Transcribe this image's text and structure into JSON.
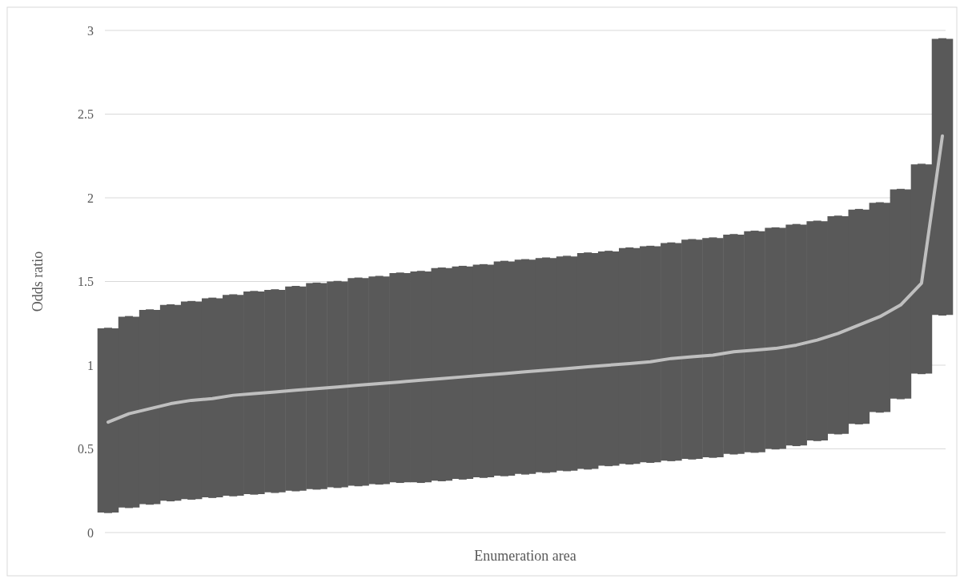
{
  "chart_data": {
    "type": "line",
    "xlabel": "Enumeration area",
    "ylabel": "Odds ratio",
    "categories": [
      null,
      null,
      null,
      null,
      null,
      null,
      null,
      null,
      null,
      null,
      null,
      null,
      null,
      null,
      null,
      null,
      null,
      null,
      null,
      null,
      null,
      null,
      null,
      null,
      null,
      null,
      null,
      null,
      null,
      null,
      null,
      null,
      null,
      null,
      null,
      null,
      null,
      null,
      null,
      null,
      null
    ],
    "series": [
      {
        "color": "#bfbfbf",
        "values": [
          0.66,
          0.71,
          0.74,
          0.77,
          0.79,
          0.8,
          0.82,
          0.83,
          0.84,
          0.85,
          0.86,
          0.87,
          0.88,
          0.89,
          0.9,
          0.91,
          0.92,
          0.93,
          0.94,
          0.95,
          0.96,
          0.97,
          0.98,
          0.99,
          1.0,
          1.01,
          1.02,
          1.04,
          1.05,
          1.06,
          1.08,
          1.09,
          1.1,
          1.12,
          1.15,
          1.19,
          1.24,
          1.29,
          1.36,
          1.49,
          2.37
        ],
        "errors": [
          [
            0.12,
            1.22
          ],
          [
            0.15,
            1.29
          ],
          [
            0.17,
            1.33
          ],
          [
            0.19,
            1.36
          ],
          [
            0.2,
            1.38
          ],
          [
            0.21,
            1.4
          ],
          [
            0.22,
            1.42
          ],
          [
            0.23,
            1.44
          ],
          [
            0.24,
            1.45
          ],
          [
            0.25,
            1.47
          ],
          [
            0.26,
            1.49
          ],
          [
            0.27,
            1.5
          ],
          [
            0.28,
            1.52
          ],
          [
            0.29,
            1.53
          ],
          [
            0.3,
            1.55
          ],
          [
            0.3,
            1.56
          ],
          [
            0.31,
            1.58
          ],
          [
            0.32,
            1.59
          ],
          [
            0.33,
            1.6
          ],
          [
            0.34,
            1.62
          ],
          [
            0.35,
            1.63
          ],
          [
            0.36,
            1.64
          ],
          [
            0.37,
            1.65
          ],
          [
            0.38,
            1.67
          ],
          [
            0.4,
            1.68
          ],
          [
            0.41,
            1.7
          ],
          [
            0.42,
            1.71
          ],
          [
            0.43,
            1.73
          ],
          [
            0.44,
            1.75
          ],
          [
            0.45,
            1.76
          ],
          [
            0.47,
            1.78
          ],
          [
            0.48,
            1.8
          ],
          [
            0.5,
            1.82
          ],
          [
            0.52,
            1.84
          ],
          [
            0.55,
            1.86
          ],
          [
            0.59,
            1.89
          ],
          [
            0.65,
            1.93
          ],
          [
            0.72,
            1.97
          ],
          [
            0.8,
            2.05
          ],
          [
            0.95,
            2.2
          ],
          [
            1.3,
            2.95
          ]
        ]
      }
    ],
    "ylim": [
      0,
      3
    ],
    "yticks": [
      0,
      0.5,
      1,
      1.5,
      2,
      2.5,
      3
    ],
    "grid": "y",
    "marker": "none",
    "line_style": "solid"
  }
}
